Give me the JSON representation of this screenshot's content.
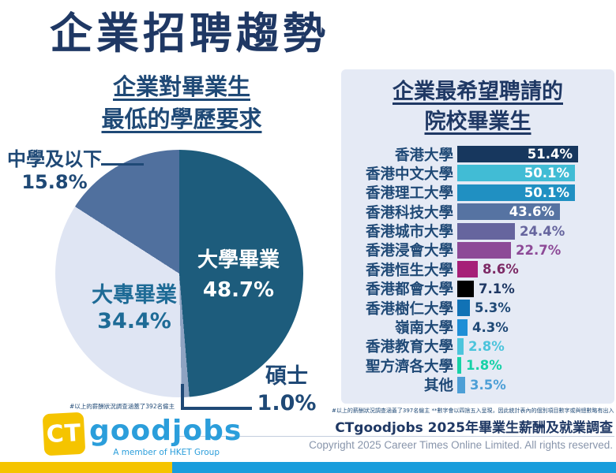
{
  "page": {
    "title": "企業招聘趨勢"
  },
  "pie_section": {
    "title_line1": "企業對畢業生",
    "title_line2": "最低的學歷要求",
    "footnote": "#以上的薪酬狀況調查涵蓋了392名僱主"
  },
  "bar_section": {
    "title_line1": "企業最希望聘請的",
    "title_line2": "院校畢業生",
    "footnote": "#以上的薪酬狀況調查涵蓋了397名僱主  **數字會以四捨五入呈現，因此統計表內的個別項目數字或與總數略有出入",
    "source_line": "CTgoodjobs 2025年畢業生薪酬及就業調查"
  },
  "footer": {
    "logo_ct": "CT",
    "logo_goodjobs": "goodjobs",
    "logo_tagline": "A member of HKET Group",
    "copyright": "Copyright 2025 Career Times Online Limited. All rights reserved.",
    "accent_yellow": "#f5c400",
    "accent_blue": "#199ddc"
  },
  "chart_data": [
    {
      "type": "pie",
      "title": "企業對畢業生最低的學歷要求",
      "start_angle_deg": 0,
      "direction": "clockwise",
      "segments": [
        {
          "label": "大學畢業",
          "value": 48.7,
          "color": "#1d5c7c",
          "label_color": "#ffffff",
          "label_inside": true
        },
        {
          "label": "碩士",
          "value": 1.0,
          "color": "#8ea3c2",
          "label_color": "#1f4976",
          "label_inside": false
        },
        {
          "label": "大專畢業",
          "value": 34.4,
          "color": "#dfe5f3",
          "label_color": "#1e6b96",
          "label_inside": true
        },
        {
          "label": "中學及以下",
          "value": 15.8,
          "color": "#50709e",
          "label_color": "#1f4976",
          "label_inside": false
        }
      ]
    },
    {
      "type": "bar",
      "title": "企業最希望聘請的院校畢業生",
      "orientation": "horizontal",
      "xlim": [
        0,
        55
      ],
      "categories": [
        "香港大學",
        "香港中文大學",
        "香港理工大學",
        "香港科技大學",
        "香港城市大學",
        "香港浸會大學",
        "香港恒生大學",
        "香港都會大學",
        "香港樹仁大學",
        "嶺南大學",
        "香港教育大學",
        "聖方濟各大學",
        "其他"
      ],
      "values": [
        51.4,
        50.1,
        50.1,
        43.6,
        24.4,
        22.7,
        8.6,
        7.1,
        5.3,
        4.3,
        2.8,
        1.8,
        3.5
      ],
      "bar_colors": [
        "#17375e",
        "#41bcd5",
        "#2090c2",
        "#5673a2",
        "#66659e",
        "#8d4a97",
        "#a62078",
        "#000000",
        "#1172b5",
        "#1e8ed6",
        "#4cc4dc",
        "#17d1a7",
        "#4d9fd6"
      ],
      "value_colors": [
        "#ffffff",
        "#ffffff",
        "#ffffff",
        "#ffffff",
        "#66659e",
        "#8d4a97",
        "#7d2a66",
        "#1f3864",
        "#1f4976",
        "#1f4976",
        "#4cc4dc",
        "#17d1a7",
        "#4d9fd6"
      ],
      "value_inside": [
        true,
        true,
        true,
        true,
        false,
        false,
        false,
        false,
        false,
        false,
        false,
        false,
        false
      ]
    }
  ]
}
